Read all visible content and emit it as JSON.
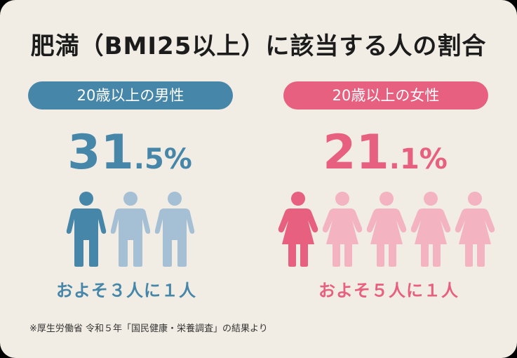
{
  "title": "肥満（BMI25以上）に該当する人の割合",
  "men": {
    "label": "20歳以上の男性",
    "pct_int": "31",
    "pct_frac": ".5%",
    "approx": "およそ３人に１人",
    "color": "#4586a9",
    "light_color": "#a5bfd4",
    "icon": "man-icon"
  },
  "women": {
    "label": "20歳以上の女性",
    "pct_int": "21",
    "pct_frac": ".1%",
    "approx": "およそ５人に１人",
    "color": "#e8607f",
    "light_color": "#f4b3c1",
    "icon": "woman-icon"
  },
  "note": "※厚生労働省 令和５年「国民健康・栄養調査」の結果より"
}
